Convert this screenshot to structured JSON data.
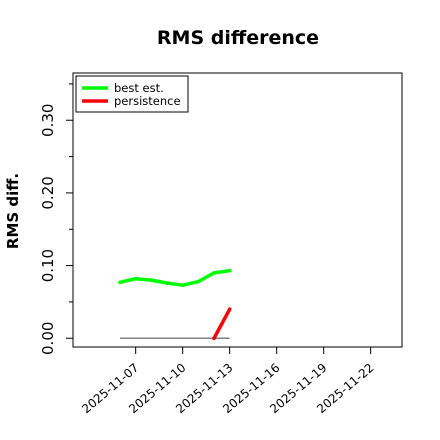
{
  "chart_data": {
    "type": "line",
    "title": "RMS difference",
    "xlabel": "",
    "ylabel": "RMS diff.",
    "x_ticks": [
      "2025-11-07",
      "2025-11-10",
      "2025-11-13",
      "2025-11-16",
      "2025-11-19",
      "2025-11-22"
    ],
    "x_range": [
      "2025-11-03",
      "2025-11-24"
    ],
    "y_ticks": [
      "0.00",
      "0.10",
      "0.20",
      "0.30"
    ],
    "ylim": [
      -0.012,
      0.365
    ],
    "legend_position": "top-left",
    "grid": false,
    "reference_line": {
      "y": 0.0,
      "from": "2025-11-06",
      "to": "2025-11-13",
      "color": "#808080"
    },
    "series": [
      {
        "name": "best est.",
        "color": "#00ff00",
        "x": [
          "2025-11-06",
          "2025-11-07",
          "2025-11-08",
          "2025-11-09",
          "2025-11-10",
          "2025-11-11",
          "2025-11-12",
          "2025-11-13"
        ],
        "y": [
          0.077,
          0.082,
          0.08,
          0.076,
          0.073,
          0.078,
          0.09,
          0.093
        ]
      },
      {
        "name": "persistence",
        "color": "#ff0000",
        "x": [
          "2025-11-12",
          "2025-11-13"
        ],
        "y": [
          0.0,
          0.04
        ]
      }
    ]
  }
}
